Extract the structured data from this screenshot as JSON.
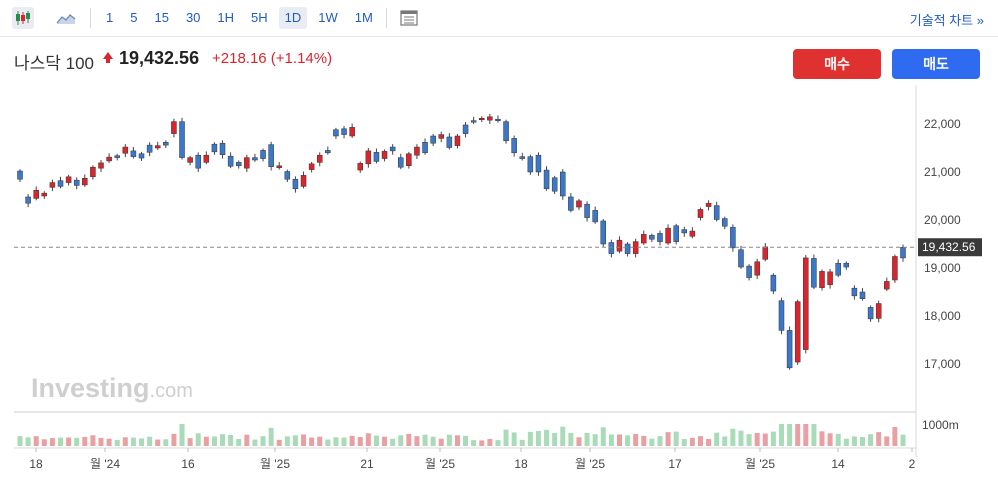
{
  "toolbar": {
    "candles_icon": "candlestick-icon",
    "line_icon": "line-chart-icon",
    "intervals": [
      "1",
      "5",
      "15",
      "30",
      "1H",
      "5H",
      "1D",
      "1W",
      "1M"
    ],
    "active_interval": "1D",
    "table_icon": "table-icon",
    "technical_link": "기술적 차트 »"
  },
  "header": {
    "symbol": "나스닥 100",
    "price": "19,432.56",
    "change": "+218.16 (+1.14%)",
    "buy_label": "매수",
    "sell_label": "매도"
  },
  "watermark": "Investing.com",
  "colors": {
    "up": "#d9262e",
    "down": "#3b78c9",
    "vol_up": "#e8a0a3",
    "vol_down": "#a9dbb9"
  },
  "chart_data": {
    "type": "candlestick",
    "y_ticks": [
      "22,000",
      "21,000",
      "20,000",
      "19,000",
      "18,000",
      "17,000"
    ],
    "ylim": [
      16400,
      22800
    ],
    "last_price_label": "19,432.56",
    "last_price": 19432.56,
    "volume_tick": "1000m",
    "x_ticks": [
      "18",
      "월 '24",
      "16",
      "월 '25",
      "21",
      "월 '25",
      "18",
      "월 '25",
      "17",
      "월 '25",
      "14",
      "2"
    ],
    "candles": [
      [
        21020,
        20850
      ],
      [
        20480,
        20350
      ],
      [
        20450,
        20620
      ],
      [
        20500,
        20560
      ],
      [
        20680,
        20780
      ],
      [
        20820,
        20700
      ],
      [
        20780,
        20900
      ],
      [
        20830,
        20720
      ],
      [
        20730,
        20870
      ],
      [
        20900,
        21100
      ],
      [
        21080,
        21190
      ],
      [
        21230,
        21310
      ],
      [
        21340,
        21300
      ],
      [
        21390,
        21520
      ],
      [
        21440,
        21320
      ],
      [
        21380,
        21290
      ],
      [
        21560,
        21410
      ],
      [
        21500,
        21550
      ],
      [
        21620,
        21560
      ],
      [
        21800,
        22050
      ],
      [
        22050,
        21300
      ],
      [
        21200,
        21300
      ],
      [
        21350,
        21080
      ],
      [
        21200,
        21350
      ],
      [
        21580,
        21420
      ],
      [
        21600,
        21360
      ],
      [
        21330,
        21120
      ],
      [
        21200,
        21130
      ],
      [
        21080,
        21300
      ],
      [
        21300,
        21250
      ],
      [
        21450,
        21280
      ],
      [
        21570,
        21110
      ],
      [
        21090,
        21130
      ],
      [
        21010,
        20850
      ],
      [
        20850,
        20650
      ],
      [
        20700,
        20930
      ],
      [
        21050,
        21170
      ],
      [
        21200,
        21350
      ],
      [
        21450,
        21400
      ],
      [
        21880,
        21750
      ],
      [
        21900,
        21780
      ],
      [
        21750,
        21930
      ],
      [
        21040,
        21180
      ],
      [
        21170,
        21440
      ],
      [
        21410,
        21220
      ],
      [
        21280,
        21430
      ],
      [
        21520,
        21440
      ],
      [
        21300,
        21100
      ],
      [
        21130,
        21380
      ],
      [
        21350,
        21520
      ],
      [
        21620,
        21400
      ],
      [
        21750,
        21600
      ],
      [
        21700,
        21780
      ],
      [
        21730,
        21510
      ],
      [
        21550,
        21750
      ],
      [
        21980,
        21800
      ],
      [
        22070,
        22040
      ],
      [
        22100,
        22120
      ],
      [
        22080,
        22150
      ],
      [
        22100,
        22070
      ],
      [
        22050,
        21650
      ],
      [
        21700,
        21400
      ],
      [
        21320,
        21280
      ],
      [
        21320,
        21000
      ],
      [
        21350,
        21000
      ],
      [
        21040,
        20650
      ],
      [
        20880,
        20600
      ],
      [
        21000,
        20500
      ],
      [
        20480,
        20200
      ],
      [
        20270,
        20400
      ],
      [
        20330,
        20050
      ],
      [
        20200,
        19960
      ],
      [
        19980,
        19500
      ],
      [
        19530,
        19300
      ],
      [
        19350,
        19580
      ],
      [
        19500,
        19300
      ],
      [
        19300,
        19550
      ],
      [
        19520,
        19700
      ],
      [
        19680,
        19600
      ],
      [
        19720,
        19550
      ],
      [
        19520,
        19830
      ],
      [
        19880,
        19550
      ],
      [
        19800,
        19730
      ],
      [
        19660,
        19770
      ],
      [
        20050,
        20220
      ],
      [
        20280,
        20350
      ],
      [
        20300,
        20010
      ],
      [
        20030,
        19870
      ],
      [
        19850,
        19420
      ],
      [
        19380,
        19020
      ],
      [
        19040,
        18800
      ],
      [
        18850,
        19130
      ],
      [
        19180,
        19440
      ],
      [
        18850,
        18520
      ],
      [
        18320,
        17700
      ],
      [
        17700,
        16920
      ],
      [
        17040,
        18300
      ],
      [
        17300,
        19210
      ],
      [
        19200,
        18600
      ],
      [
        18590,
        18930
      ],
      [
        18650,
        18920
      ],
      [
        19100,
        18850
      ],
      [
        19100,
        19020
      ],
      [
        18580,
        18420
      ],
      [
        18500,
        18360
      ],
      [
        18180,
        17940
      ],
      [
        17950,
        18260
      ],
      [
        18560,
        18720
      ],
      [
        18750,
        19240
      ],
      [
        19430,
        19210
      ]
    ]
  }
}
